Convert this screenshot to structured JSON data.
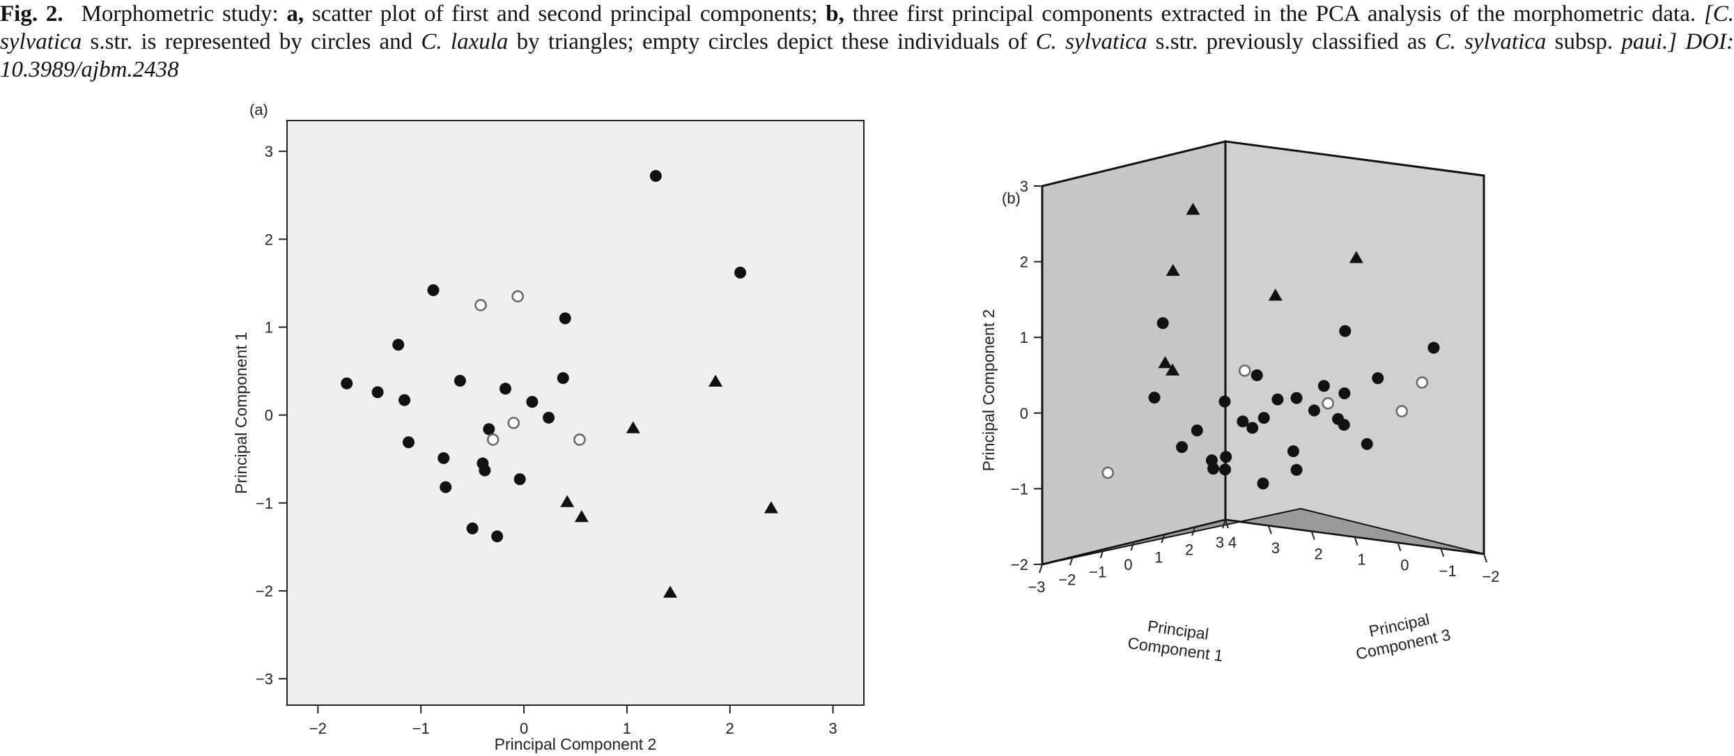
{
  "caption": {
    "fig_label": "Fig. 2.",
    "t1": "Morphometric study: ",
    "b_a": "a,",
    "t2": " scatter plot of first and second principal components; ",
    "b_b": "b,",
    "t3": " three first principal components extracted in the PCA analysis of the morphometric data. ",
    "i1": "[C. sylvatica",
    "t4": " s.str. is represented by circles and ",
    "i2": "C. laxula",
    "t5": " by triangles; empty circles depict these individuals of ",
    "i3": "C. sylvatica",
    "t6": " s.str. previously classified as ",
    "i4": "C. sylvatica",
    "t7": " subsp. ",
    "i5": "paui.] DOI: 10.3989/ajbm.2438"
  },
  "chart_data": [
    {
      "type": "scatter",
      "panel_label": "(a)",
      "xlabel": "Principal Component 2",
      "ylabel": "Principal Component 1",
      "xlim": [
        -2.3,
        3.3
      ],
      "ylim": [
        -3.3,
        3.35
      ],
      "xticks": [
        "-2",
        "-1",
        "0",
        "1",
        "2",
        "3"
      ],
      "yticks": [
        "-3",
        "-2",
        "-1",
        "0",
        "1",
        "2",
        "3"
      ],
      "background": "#efefef",
      "marker_color": "#111111",
      "series": [
        {
          "marker": "filled-circle",
          "points": [
            [
              1.28,
              2.72
            ],
            [
              2.1,
              1.62
            ],
            [
              -0.88,
              1.42
            ],
            [
              0.4,
              1.1
            ],
            [
              -1.22,
              0.8
            ],
            [
              -1.72,
              0.36
            ],
            [
              -1.42,
              0.26
            ],
            [
              -1.16,
              0.17
            ],
            [
              -0.62,
              0.39
            ],
            [
              -0.18,
              0.3
            ],
            [
              0.08,
              0.15
            ],
            [
              0.38,
              0.42
            ],
            [
              0.24,
              -0.03
            ],
            [
              -0.34,
              -0.16
            ],
            [
              -1.12,
              -0.31
            ],
            [
              -0.78,
              -0.49
            ],
            [
              -0.4,
              -0.55
            ],
            [
              -0.38,
              -0.63
            ],
            [
              -0.04,
              -0.73
            ],
            [
              -0.76,
              -0.82
            ],
            [
              -0.5,
              -1.29
            ],
            [
              -0.26,
              -1.38
            ]
          ]
        },
        {
          "marker": "empty-circle",
          "points": [
            [
              -0.42,
              1.25
            ],
            [
              -0.06,
              1.35
            ],
            [
              -0.1,
              -0.09
            ],
            [
              -0.3,
              -0.28
            ],
            [
              0.54,
              -0.28
            ]
          ]
        },
        {
          "marker": "triangle",
          "points": [
            [
              1.86,
              0.38
            ],
            [
              1.06,
              -0.15
            ],
            [
              0.42,
              -0.99
            ],
            [
              0.56,
              -1.16
            ],
            [
              2.4,
              -1.06
            ],
            [
              1.42,
              -2.02
            ]
          ]
        }
      ]
    },
    {
      "type": "scatter",
      "panel_label": "(b)",
      "projection": "3d",
      "xlabel": "Principal Component 1",
      "ylabel": "Principal Component 2",
      "zlabel": "Principal Component 3",
      "xticks": [
        "-3",
        "-2",
        "-1",
        "0",
        "1",
        "2",
        "3"
      ],
      "yticks": [
        "-2",
        "-1",
        "0",
        "1",
        "2",
        "3"
      ],
      "zticks": [
        "4",
        "3",
        "2",
        "1",
        "0",
        "-1",
        "-2"
      ],
      "xlim": [
        -3,
        3
      ],
      "ylim": [
        -2,
        3
      ],
      "zlim": [
        4,
        -2
      ],
      "wall_colors": [
        "#c7c7c7",
        "#d0d0d0",
        "#9a9a9a"
      ],
      "marker_color": "#111111",
      "series": [
        {
          "marker": "filled-circle",
          "points": [
            [
              0.95,
              0.8,
              4.0
            ],
            [
              1.7,
              0.9,
              0.3
            ],
            [
              1.92,
              0.8,
              -1.6
            ],
            [
              -0.05,
              0.6,
              -1.7
            ],
            [
              -0.2,
              0.45,
              1.0
            ],
            [
              0.3,
              0.35,
              -0.2
            ],
            [
              0.55,
              0.25,
              -0.5
            ],
            [
              -0.55,
              0.1,
              1.5
            ],
            [
              -0.3,
              0.1,
              -0.4
            ],
            [
              0.02,
              -0.3,
              -1.4
            ],
            [
              0.25,
              0.15,
              0.4
            ],
            [
              -0.42,
              -0.22,
              0.95
            ],
            [
              0.9,
              0.0,
              1.3
            ],
            [
              -0.1,
              -0.2,
              1.4
            ],
            [
              -1.02,
              0.1,
              2.8
            ],
            [
              -0.75,
              -0.3,
              2.0
            ],
            [
              -0.4,
              -0.6,
              2.6
            ],
            [
              0.45,
              -0.2,
              1.3
            ],
            [
              -0.55,
              -0.7,
              1.8
            ],
            [
              0.25,
              -0.8,
              0.4
            ],
            [
              0.45,
              -0.95,
              2.2
            ],
            [
              0.55,
              -0.1,
              -0.35
            ],
            [
              1.1,
              -0.25,
              -0.1
            ],
            [
              0.0,
              -1.0,
              1.0
            ],
            [
              0.85,
              -0.65,
              0.9
            ],
            [
              0.9,
              -0.85,
              2.5
            ],
            [
              1.05,
              -1.05,
              2.9
            ]
          ]
        },
        {
          "marker": "empty-circle",
          "points": [
            [
              -0.6,
              0.55,
              1.0
            ],
            [
              1.4,
              0.4,
              -1.7
            ],
            [
              1.3,
              0.0,
              -1.3
            ],
            [
              -0.85,
              -1.0,
              4.0
            ],
            [
              0.15,
              0.15,
              -0.4
            ]
          ]
        },
        {
          "marker": "triangle",
          "points": [
            [
              -3.0,
              2.95,
              0.5
            ],
            [
              -2.95,
              2.1,
              1.0
            ],
            [
              -2.5,
              0.8,
              1.5
            ],
            [
              -2.4,
              0.7,
              1.4
            ],
            [
              -0.3,
              1.55,
              0.5
            ],
            [
              -0.05,
              2.15,
              -1.2
            ]
          ]
        }
      ]
    }
  ]
}
